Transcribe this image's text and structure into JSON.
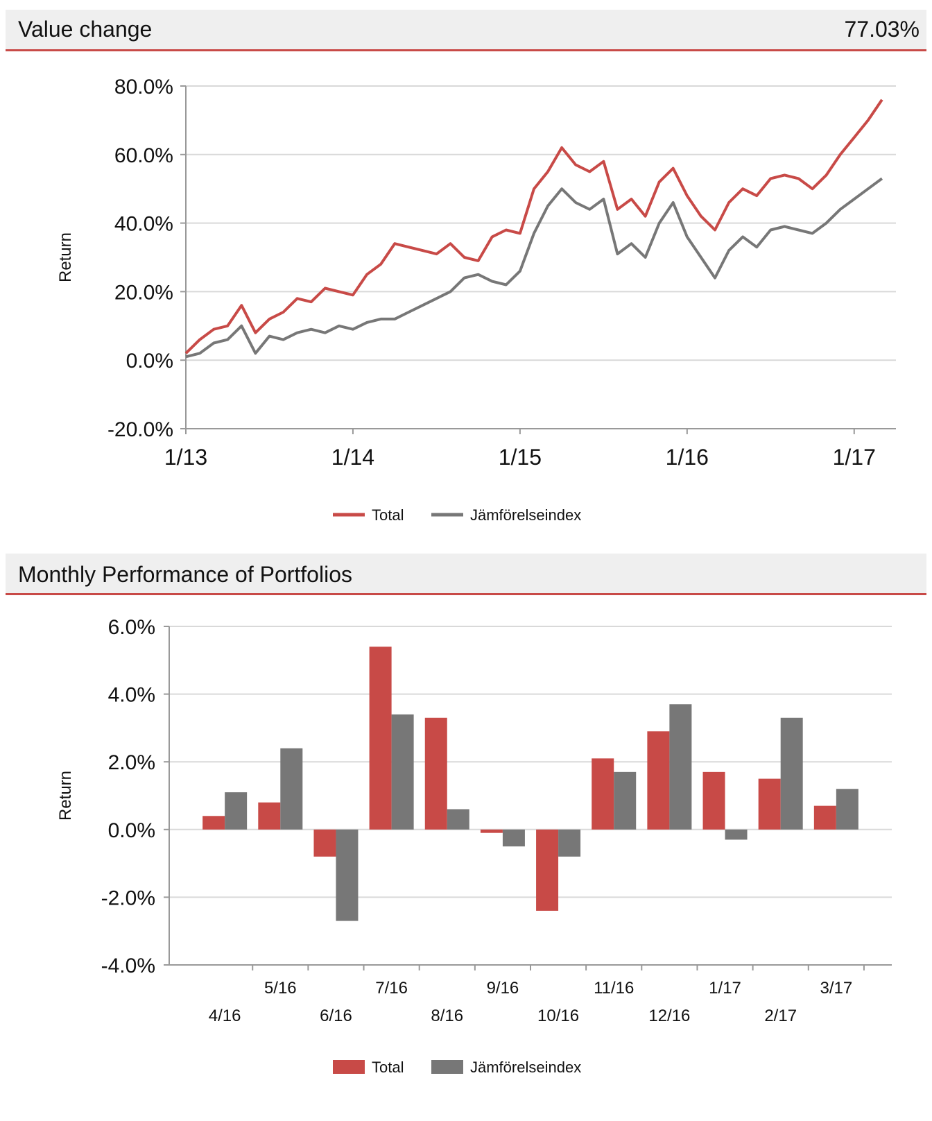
{
  "value_change": {
    "title": "Value change",
    "value": "77.03%"
  },
  "monthly": {
    "title": "Monthly Performance of Portfolios"
  },
  "colors": {
    "total": "#c84a47",
    "index": "#777777",
    "header_bg": "#efefef",
    "header_rule": "#c84a47",
    "grid": "#d9d9d9"
  },
  "chart_data": [
    {
      "type": "line",
      "ylabel": "Return",
      "ylim": [
        -20,
        80
      ],
      "y_ticks": [
        "80.0%",
        "60.0%",
        "40.0%",
        "20.0%",
        "0.0%",
        "-20.0%"
      ],
      "x_ticks": [
        "1/13",
        "1/14",
        "1/15",
        "1/16",
        "1/17"
      ],
      "grid": true,
      "legend_position": "bottom-center",
      "series": [
        {
          "name": "Total",
          "x": [
            "2013-01",
            "2013-02",
            "2013-03",
            "2013-04",
            "2013-05",
            "2013-06",
            "2013-07",
            "2013-08",
            "2013-09",
            "2013-10",
            "2013-11",
            "2013-12",
            "2014-01",
            "2014-02",
            "2014-03",
            "2014-04",
            "2014-05",
            "2014-06",
            "2014-07",
            "2014-08",
            "2014-09",
            "2014-10",
            "2014-11",
            "2014-12",
            "2015-01",
            "2015-02",
            "2015-03",
            "2015-04",
            "2015-05",
            "2015-06",
            "2015-07",
            "2015-08",
            "2015-09",
            "2015-10",
            "2015-11",
            "2015-12",
            "2016-01",
            "2016-02",
            "2016-03",
            "2016-04",
            "2016-05",
            "2016-06",
            "2016-07",
            "2016-08",
            "2016-09",
            "2016-10",
            "2016-11",
            "2016-12",
            "2017-01",
            "2017-02",
            "2017-03"
          ],
          "values": [
            2,
            6,
            9,
            10,
            16,
            8,
            12,
            14,
            18,
            17,
            21,
            20,
            19,
            25,
            28,
            34,
            33,
            32,
            31,
            34,
            30,
            29,
            36,
            38,
            37,
            50,
            55,
            62,
            57,
            55,
            58,
            44,
            47,
            42,
            52,
            56,
            48,
            42,
            38,
            46,
            50,
            48,
            53,
            54,
            53,
            50,
            54,
            60,
            65,
            70,
            76
          ]
        },
        {
          "name": "Jämförelseindex",
          "x": [
            "2013-01",
            "2013-02",
            "2013-03",
            "2013-04",
            "2013-05",
            "2013-06",
            "2013-07",
            "2013-08",
            "2013-09",
            "2013-10",
            "2013-11",
            "2013-12",
            "2014-01",
            "2014-02",
            "2014-03",
            "2014-04",
            "2014-05",
            "2014-06",
            "2014-07",
            "2014-08",
            "2014-09",
            "2014-10",
            "2014-11",
            "2014-12",
            "2015-01",
            "2015-02",
            "2015-03",
            "2015-04",
            "2015-05",
            "2015-06",
            "2015-07",
            "2015-08",
            "2015-09",
            "2015-10",
            "2015-11",
            "2015-12",
            "2016-01",
            "2016-02",
            "2016-03",
            "2016-04",
            "2016-05",
            "2016-06",
            "2016-07",
            "2016-08",
            "2016-09",
            "2016-10",
            "2016-11",
            "2016-12",
            "2017-01",
            "2017-02",
            "2017-03"
          ],
          "values": [
            1,
            2,
            5,
            6,
            10,
            2,
            7,
            6,
            8,
            9,
            8,
            10,
            9,
            11,
            12,
            12,
            14,
            16,
            18,
            20,
            24,
            25,
            23,
            22,
            26,
            37,
            45,
            50,
            46,
            44,
            47,
            31,
            34,
            30,
            40,
            46,
            36,
            30,
            24,
            32,
            36,
            33,
            38,
            39,
            38,
            37,
            40,
            44,
            47,
            50,
            53
          ]
        }
      ]
    },
    {
      "type": "bar",
      "ylabel": "Return",
      "ylim": [
        -4,
        6
      ],
      "y_ticks": [
        "6.0%",
        "4.0%",
        "2.0%",
        "0.0%",
        "-2.0%",
        "-4.0%"
      ],
      "categories": [
        "4/16",
        "5/16",
        "6/16",
        "7/16",
        "8/16",
        "9/16",
        "10/16",
        "11/16",
        "12/16",
        "1/17",
        "2/17",
        "3/17"
      ],
      "grid": true,
      "legend_position": "bottom-center",
      "series": [
        {
          "name": "Total",
          "values": [
            0.4,
            0.8,
            -0.8,
            5.4,
            3.3,
            -0.1,
            -2.4,
            2.1,
            2.9,
            1.7,
            1.5,
            0.7
          ]
        },
        {
          "name": "Jämförelseindex",
          "values": [
            1.1,
            2.4,
            -2.7,
            3.4,
            0.6,
            -0.5,
            -0.8,
            1.7,
            3.7,
            -0.3,
            3.3,
            1.2
          ]
        }
      ]
    }
  ]
}
